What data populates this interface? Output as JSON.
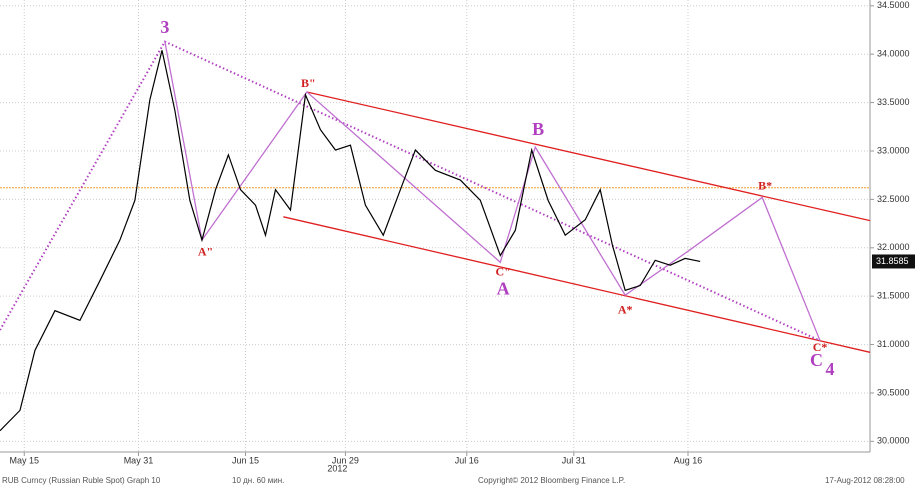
{
  "chart_data": {
    "type": "line",
    "x": [
      -3.4,
      -0.6,
      1.5,
      4.3,
      7.8,
      10.6,
      13.4,
      15.5,
      17.6,
      19.3,
      21.1,
      23.2,
      24.9,
      26.8,
      28.6,
      30.3,
      32.4,
      33.8,
      35.2,
      37.3,
      39.4,
      41.5,
      43.6,
      45.7,
      47.8,
      50.3,
      52.7,
      54.8,
      57.6,
      61.1,
      63.9,
      66.7,
      68.8,
      71.1,
      73.4,
      75.8,
      78.6,
      80.7,
      82.4,
      84.2,
      86.3,
      88.4,
      90.5,
      92.6,
      94.7
    ],
    "series": [
      {
        "color": "#000000",
        "values": [
          30.11,
          30.32,
          30.94,
          31.35,
          31.25,
          31.66,
          32.08,
          32.49,
          33.53,
          34.04,
          33.42,
          32.49,
          32.08,
          32.6,
          32.96,
          32.6,
          32.44,
          32.13,
          32.6,
          32.39,
          33.58,
          33.22,
          33.01,
          33.06,
          32.44,
          32.13,
          32.6,
          33.01,
          32.8,
          32.7,
          32.49,
          31.92,
          32.18,
          33.01,
          32.49,
          32.13,
          32.29,
          32.6,
          32.03,
          31.56,
          31.61,
          31.87,
          31.82,
          31.89,
          31.8585
        ]
      }
    ],
    "last_price": {
      "value": 31.8585,
      "label": "31.8585"
    },
    "reference_level": {
      "value": 32.62,
      "color": "#f0a030"
    },
    "xlim": [
      -3.4,
      118.5
    ],
    "ylim": [
      29.89,
      34.56
    ],
    "xticks": [
      {
        "value": 0,
        "label": "May 15"
      },
      {
        "value": 16,
        "label": "May 31"
      },
      {
        "value": 31,
        "label": "Jun 15"
      },
      {
        "value": 45,
        "label": "Jun 29"
      },
      {
        "value": 62,
        "label": "Jul 16"
      },
      {
        "value": 77,
        "label": "Jul 31"
      },
      {
        "value": 93,
        "label": "Aug 16"
      }
    ],
    "year_label": "2012",
    "yticks": [
      {
        "value": 30,
        "label": "30.0000"
      },
      {
        "value": 30.5,
        "label": "30.5000"
      },
      {
        "value": 31,
        "label": "31.0000"
      },
      {
        "value": 31.5,
        "label": "31.5000"
      },
      {
        "value": 32,
        "label": "32.0000"
      },
      {
        "value": 32.5,
        "label": "32.5000"
      },
      {
        "value": 33,
        "label": "33.0000"
      },
      {
        "value": 33.5,
        "label": "33.5000"
      },
      {
        "value": 34,
        "label": "34.0000"
      },
      {
        "value": 34.5,
        "label": "34.5000"
      }
    ],
    "grid": true,
    "overlays": [
      {
        "color": "#e02020",
        "dashed": false,
        "x": [
          36.3,
          118.5
        ],
        "y": [
          32.32,
          30.92
        ]
      },
      {
        "color": "#e02020",
        "dashed": false,
        "x": [
          39.6,
          118.5
        ],
        "y": [
          33.61,
          32.28
        ]
      },
      {
        "color": "#b040c0",
        "dashed": true,
        "x": [
          -3.4,
          19.7,
          111.5
        ],
        "y": [
          31.15,
          34.13,
          31.04
        ]
      },
      {
        "color": "#c070d0",
        "dashed": false,
        "x": [
          19.7,
          24.9,
          39.6,
          66.7,
          71.6,
          84.2,
          93.3,
          103.4,
          111.5
        ],
        "y": [
          34.13,
          32.08,
          33.61,
          31.85,
          33.04,
          31.51,
          31.98,
          32.52,
          31.04
        ]
      }
    ],
    "wave_labels": {
      "color": "#b040c0",
      "items": [
        {
          "text": "3",
          "x": 19.7,
          "y": 34.26
        },
        {
          "text": "A",
          "x": 67.1,
          "y": 31.56
        },
        {
          "text": "B",
          "x": 72.0,
          "y": 33.21
        },
        {
          "text": "C",
          "x": 111.0,
          "y": 30.82
        },
        {
          "text": "4",
          "x": 112.9,
          "y": 30.73
        }
      ]
    },
    "point_labels": {
      "color": "#d02020",
      "items": [
        {
          "text": "B\"",
          "x": 39.8,
          "y": 33.69
        },
        {
          "text": "A\"",
          "x": 25.4,
          "y": 31.95
        },
        {
          "text": "C\"",
          "x": 67.1,
          "y": 31.74
        },
        {
          "text": "A*",
          "x": 84.2,
          "y": 31.35
        },
        {
          "text": "B*",
          "x": 103.8,
          "y": 32.63
        },
        {
          "text": "C*",
          "x": 111.5,
          "y": 30.96
        }
      ]
    },
    "footer": [
      "RUB Curncy (Russian Ruble Spot) Graph 10",
      "10 дн. 60 мин.",
      "Copyright© 2012 Bloomberg Finance L.P.",
      "17-Aug-2012 08:28:00"
    ]
  }
}
